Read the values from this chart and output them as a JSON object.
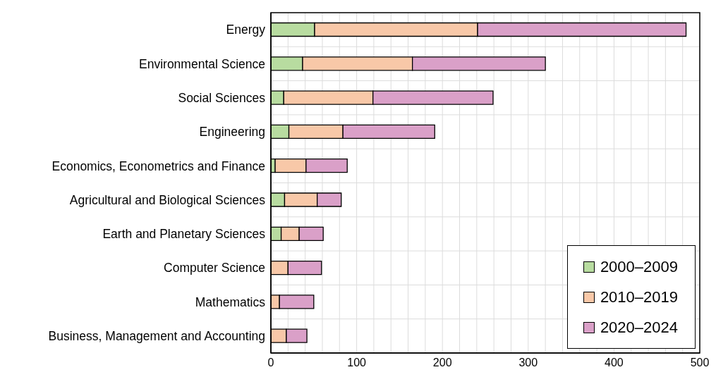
{
  "chart_data": {
    "type": "bar",
    "orientation": "horizontal",
    "stacked": true,
    "categories": [
      "Energy",
      "Environmental Science",
      "Social Sciences",
      "Engineering",
      "Economics, Econometrics and Finance",
      "Agricultural and Biological Sciences",
      "Earth and Planetary Sciences",
      "Computer Science",
      "Mathematics",
      "Business, Management and Accounting"
    ],
    "series": [
      {
        "name": "2000–2009",
        "color": "#b8dca0",
        "values": [
          51,
          37,
          15,
          21,
          5,
          16,
          12,
          null,
          null,
          null
        ]
      },
      {
        "name": "2010–2019",
        "color": "#f8c8a8",
        "values": [
          190,
          128,
          104,
          63,
          36,
          38,
          21,
          20,
          10,
          18
        ]
      },
      {
        "name": "2020–2024",
        "color": "#daa0c8",
        "values": [
          243,
          155,
          140,
          107,
          48,
          28,
          28,
          39,
          40,
          24
        ]
      }
    ],
    "xlim": [
      0,
      500
    ],
    "xticks": [
      0,
      {
        "value": 20,
        "label": null
      },
      {
        "value": 40,
        "label": null
      },
      {
        "value": 60,
        "label": null
      },
      {
        "value": 80,
        "label": null
      },
      100,
      {
        "value": 120,
        "label": null
      },
      {
        "value": 140,
        "label": null
      },
      {
        "value": 160,
        "label": null
      },
      {
        "value": 180,
        "label": null
      },
      200,
      {
        "value": 220,
        "label": null
      },
      {
        "value": 240,
        "label": null
      },
      {
        "value": 260,
        "label": null
      },
      {
        "value": 280,
        "label": null
      },
      300,
      {
        "value": 320,
        "label": null
      },
      {
        "value": 340,
        "label": null
      },
      {
        "value": 360,
        "label": null
      },
      {
        "value": 380,
        "label": null
      },
      400,
      {
        "value": 420,
        "label": null
      },
      {
        "value": 440,
        "label": null
      },
      {
        "value": 460,
        "label": null
      },
      {
        "value": 480,
        "label": null
      },
      500
    ],
    "grid": true,
    "legend": "bottom right"
  }
}
